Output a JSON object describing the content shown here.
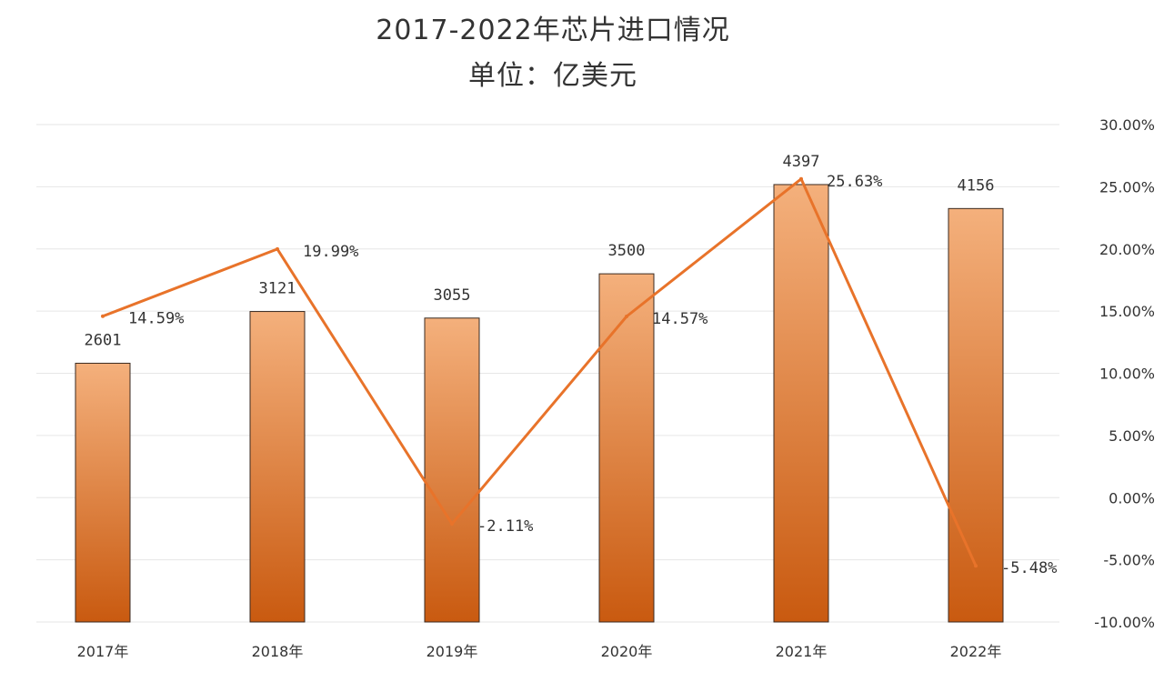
{
  "chart_data": {
    "type": "bar",
    "title": "2017-2022年芯片进口情况",
    "subtitle": "单位：亿美元",
    "categories": [
      "2017年",
      "2018年",
      "2019年",
      "2020年",
      "2021年",
      "2022年"
    ],
    "series": [
      {
        "type": "bar",
        "axis": "left",
        "values": [
          2601,
          3121,
          3055,
          3500,
          4397,
          4156
        ]
      },
      {
        "type": "line",
        "axis": "right",
        "values": [
          14.59,
          19.99,
          -2.11,
          14.57,
          25.63,
          -5.48
        ],
        "labels": [
          "14.59%",
          "19.99%",
          "-2.11%",
          "14.57%",
          "25.63%",
          "-5.48%"
        ]
      }
    ],
    "y_right": {
      "ticks": [
        30,
        25,
        20,
        15,
        10,
        5,
        0,
        -5,
        -10
      ],
      "tick_labels": [
        "30.00%",
        "25.00%",
        "20.00%",
        "15.00%",
        "10.00%",
        "5.00%",
        "0.00%",
        "-5.00%",
        "-10.00%"
      ],
      "ylim": [
        -10,
        30
      ]
    },
    "y_left_ylim": [
      0,
      5000
    ],
    "grid": true,
    "colors": {
      "bar_top": "#f4b07c",
      "bar_bottom": "#c95a10",
      "bar_edge": "#3a2a20",
      "line": "#e8732a",
      "grid": "#e6e6e6"
    }
  }
}
